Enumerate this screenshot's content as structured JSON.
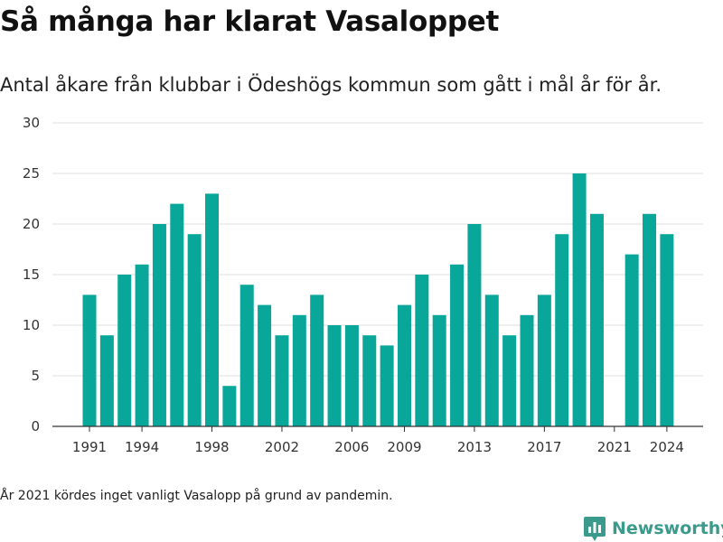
{
  "header": {
    "title": "Så många har klarat Vasaloppet",
    "subtitle": "Antal åkare från klubbar i Ödeshögs kommun som gått i mål år för år."
  },
  "footnote": "År 2021 kördes inget vanligt Vasalopp på grund av pandemin.",
  "logo": {
    "text": "Newsworthy",
    "icon": "bar-chart-badge-icon",
    "color": "#3a9b8c"
  },
  "colors": {
    "bar": "#09a69a",
    "grid": "#dddddd",
    "axis": "#333333"
  },
  "chart_data": {
    "type": "bar",
    "x": [
      1991,
      1992,
      1993,
      1994,
      1995,
      1996,
      1997,
      1998,
      1999,
      2000,
      2001,
      2002,
      2003,
      2004,
      2005,
      2006,
      2007,
      2008,
      2009,
      2010,
      2011,
      2012,
      2013,
      2014,
      2015,
      2016,
      2017,
      2018,
      2019,
      2020,
      2021,
      2022,
      2023,
      2024
    ],
    "values": [
      13,
      9,
      15,
      16,
      20,
      22,
      19,
      23,
      4,
      14,
      12,
      9,
      11,
      13,
      10,
      10,
      9,
      8,
      12,
      15,
      11,
      16,
      20,
      13,
      9,
      11,
      13,
      19,
      25,
      21,
      null,
      17,
      21,
      19
    ],
    "x_ticks": [
      "1991",
      "1994",
      "1998",
      "2002",
      "2006",
      "2009",
      "2013",
      "2017",
      "2021",
      "2024"
    ],
    "y_ticks": [
      "0",
      "5",
      "10",
      "15",
      "20",
      "25",
      "30"
    ],
    "ylim": [
      0,
      30
    ],
    "grid": true,
    "xlabel": "",
    "ylabel": ""
  }
}
